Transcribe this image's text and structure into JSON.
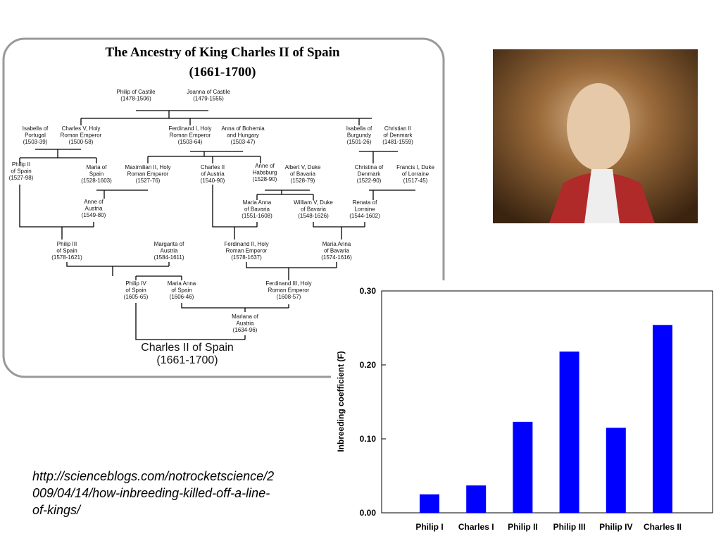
{
  "tree": {
    "title": [
      "The Ancestry of King Charles II of Spain",
      "(1661-1700)"
    ],
    "nodes": [
      {
        "lines": [
          "Philip of Castile",
          "(1478-1506)"
        ]
      },
      {
        "lines": [
          "Joanna of Castile",
          "(1479-1555)"
        ]
      },
      {
        "lines": [
          "Isabella of",
          "Portugal",
          "(1503-39)"
        ]
      },
      {
        "lines": [
          "Charles V, Holy",
          "Roman Emperor",
          "(1500-58)"
        ]
      },
      {
        "lines": [
          "Ferdinand I, Holy",
          "Roman Emperor",
          "(1503-64)"
        ]
      },
      {
        "lines": [
          "Anna of Bohemia",
          "and Hungary",
          "(1503-47)"
        ]
      },
      {
        "lines": [
          "Isabella of",
          "Burgundy",
          "(1501-26)"
        ]
      },
      {
        "lines": [
          "Christian II",
          "of Denmark",
          "(1481-1559)"
        ]
      },
      {
        "lines": [
          "Philip II",
          "of Spain",
          "(1527-98)"
        ]
      },
      {
        "lines": [
          "Maria of",
          "Spain",
          "(1528-1603)"
        ]
      },
      {
        "lines": [
          "Maximilian II, Holy",
          "Roman Emperor",
          "(1527-76)"
        ]
      },
      {
        "lines": [
          "Charles II",
          "of Austria",
          "(1540-90)"
        ]
      },
      {
        "lines": [
          "Anne of",
          "Habsburg",
          "(1528-90)"
        ]
      },
      {
        "lines": [
          "Albert V, Duke",
          "of Bavaria",
          "(1528-79)"
        ]
      },
      {
        "lines": [
          "Christina of",
          "Denmark",
          "(1522-90)"
        ]
      },
      {
        "lines": [
          "Francis I, Duke",
          "of Lorraine",
          "(1517-45)"
        ]
      },
      {
        "lines": [
          "Anne of",
          "Austria",
          "(1549-80)"
        ]
      },
      {
        "lines": [
          "Maria Anna",
          "of Bavaria",
          "(1551-1608)"
        ]
      },
      {
        "lines": [
          "William V, Duke",
          "of Bavaria",
          "(1548-1626)"
        ]
      },
      {
        "lines": [
          "Renata of",
          "Lorraine",
          "(1544-1602)"
        ]
      },
      {
        "lines": [
          "Philip III",
          "of Spain",
          "(1578-1621)"
        ]
      },
      {
        "lines": [
          "Margarita of",
          "Austria",
          "(1584-1611)"
        ]
      },
      {
        "lines": [
          "Ferdinand II, Holy",
          "Roman Emperor",
          "(1578-1637)"
        ]
      },
      {
        "lines": [
          "Maria Anna",
          "of Bavaria",
          "(1574-1616)"
        ]
      },
      {
        "lines": [
          "Philip IV",
          "of Spain",
          "(1605-65)"
        ]
      },
      {
        "lines": [
          "Maria Anna",
          "of Spain",
          "(1606-46)"
        ]
      },
      {
        "lines": [
          "Ferdinand III, Holy",
          "Roman Emperor",
          "(1608-57)"
        ]
      },
      {
        "lines": [
          "Mariana of",
          "Austria",
          "(1634-96)"
        ]
      },
      {
        "lines": [
          "Charles II of Spain",
          "(1661-1700)"
        ]
      }
    ]
  },
  "caption": [
    "http://scienceblogs.com/notrocketscience/2",
    "009/04/14/how-inbreeding-killed-off-a-line-",
    "of-kings/"
  ],
  "chart_data": {
    "type": "bar",
    "ylabel": "Inbreeding coefficient (F)",
    "categories": [
      "Philip I",
      "Charles I",
      "Philip II",
      "Philip III",
      "Philip IV",
      "Charles II"
    ],
    "values": [
      0.025,
      0.037,
      0.123,
      0.218,
      0.115,
      0.254
    ],
    "color": "#0000ff",
    "ylim": [
      0,
      0.3
    ],
    "yticks": [
      {
        "value": 0,
        "label": "0.00"
      },
      {
        "value": 0.1,
        "label": "0.10"
      },
      {
        "value": 0.2,
        "label": "0.20"
      },
      {
        "value": 0.3,
        "label": "0.30"
      }
    ]
  }
}
